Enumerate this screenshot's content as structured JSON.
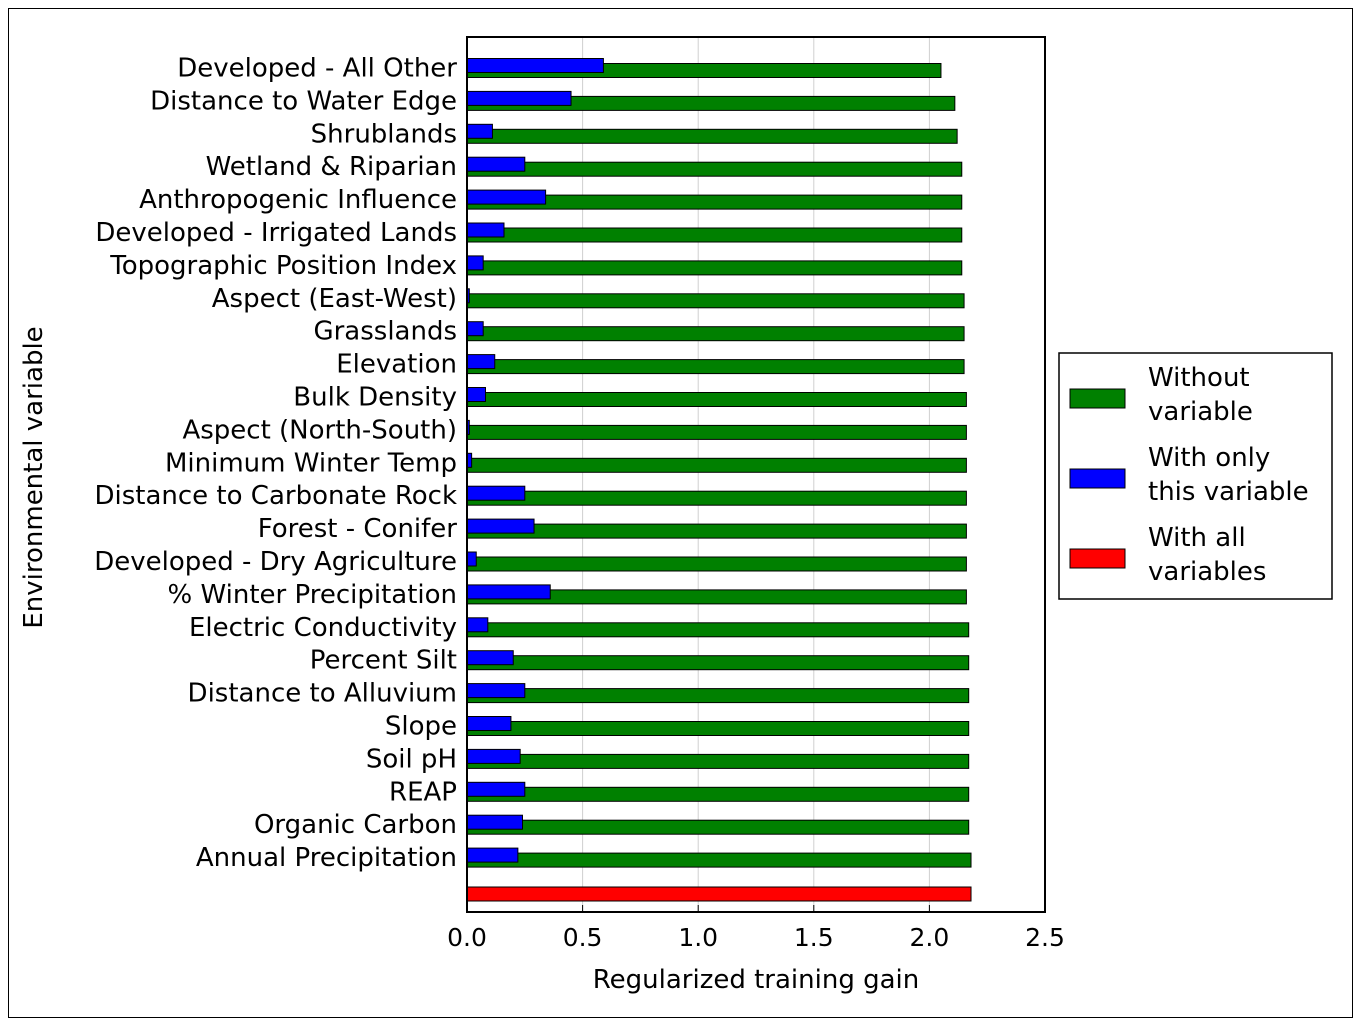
{
  "chart_data": {
    "type": "bar",
    "orientation": "horizontal",
    "xlabel": "Regularized training gain",
    "ylabel": "Environmental variable",
    "xlim": [
      0,
      2.5
    ],
    "xticks": [
      "0.0",
      "0.5",
      "1.0",
      "1.5",
      "2.0",
      "2.5"
    ],
    "grid": "vertical",
    "legend_position": "right",
    "colors": {
      "without": "#008000",
      "only": "#0000ff",
      "all": "#ff0000"
    },
    "legend": [
      {
        "key": "without",
        "lines": [
          "Without",
          "variable"
        ]
      },
      {
        "key": "only",
        "lines": [
          "With only",
          "this variable"
        ]
      },
      {
        "key": "all",
        "lines": [
          "With all",
          "variables"
        ]
      }
    ],
    "categories": [
      "Developed - All Other",
      "Distance to Water Edge",
      "Shrublands",
      "Wetland & Riparian",
      "Anthropogenic Influence",
      "Developed - Irrigated Lands",
      "Topographic Position Index",
      "Aspect (East-West)",
      "Grasslands",
      "Elevation",
      "Bulk Density",
      "Aspect (North-South)",
      "Minimum Winter Temp",
      "Distance to Carbonate Rock",
      "Forest - Conifer",
      "Developed - Dry Agriculture",
      "% Winter Precipitation",
      "Electric Conductivity",
      "Percent Silt",
      "Distance to Alluvium",
      "Slope",
      "Soil pH",
      "REAP",
      "Organic Carbon",
      "Annual Precipitation"
    ],
    "series": [
      {
        "name": "Without variable",
        "key": "without",
        "values": [
          2.05,
          2.11,
          2.12,
          2.14,
          2.14,
          2.14,
          2.14,
          2.15,
          2.15,
          2.15,
          2.16,
          2.16,
          2.16,
          2.16,
          2.16,
          2.16,
          2.16,
          2.17,
          2.17,
          2.17,
          2.17,
          2.17,
          2.17,
          2.17,
          2.18
        ]
      },
      {
        "name": "With only this variable",
        "key": "only",
        "values": [
          0.59,
          0.45,
          0.11,
          0.25,
          0.34,
          0.16,
          0.07,
          0.01,
          0.07,
          0.12,
          0.08,
          0.01,
          0.02,
          0.25,
          0.29,
          0.04,
          0.36,
          0.09,
          0.2,
          0.25,
          0.19,
          0.23,
          0.25,
          0.24,
          0.22
        ]
      }
    ],
    "all_variables": {
      "name": "With all variables",
      "key": "all",
      "value": 2.18
    }
  }
}
